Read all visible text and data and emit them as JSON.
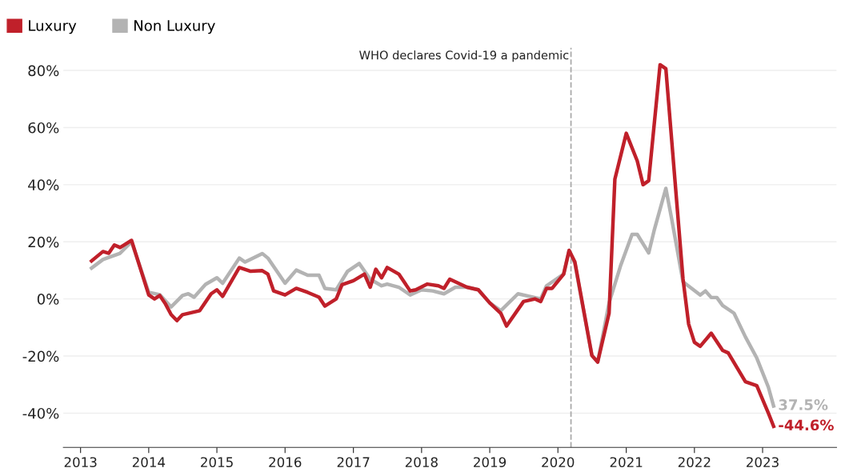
{
  "chart_data": {
    "type": "line",
    "series": [
      {
        "name": "Luxury",
        "color": "#c0202a",
        "x": [
          "2013-03",
          "2013-05",
          "2013-06",
          "2013-07",
          "2013-08",
          "2013-10",
          "2014-01",
          "2014-02",
          "2014-03",
          "2014-04",
          "2014-05",
          "2014-06",
          "2014-07",
          "2014-10",
          "2014-12",
          "2015-01",
          "2015-02",
          "2015-05",
          "2015-07",
          "2015-09",
          "2015-10",
          "2015-11",
          "2016-01",
          "2016-03",
          "2016-05",
          "2016-07",
          "2016-08",
          "2016-10",
          "2016-11",
          "2017-01",
          "2017-03",
          "2017-04",
          "2017-05",
          "2017-06",
          "2017-07",
          "2017-09",
          "2017-11",
          "2017-12",
          "2018-02",
          "2018-04",
          "2018-05",
          "2018-06",
          "2018-09",
          "2018-11",
          "2019-01",
          "2019-03",
          "2019-04",
          "2019-07",
          "2019-09",
          "2019-10",
          "2019-11",
          "2019-12",
          "2020-02",
          "2020-03",
          "2020-04",
          "2020-07",
          "2020-08",
          "2020-10",
          "2020-11",
          "2021-01",
          "2021-03",
          "2021-04",
          "2021-05",
          "2021-07",
          "2021-08",
          "2021-11",
          "2021-12",
          "2022-01",
          "2022-02",
          "2022-04",
          "2022-06",
          "2022-07",
          "2022-10",
          "2022-12",
          "2023-02",
          "2023-03"
        ],
        "values": [
          13.3,
          16.6,
          16,
          18.9,
          18,
          20.5,
          1.4,
          0,
          1.2,
          -1.8,
          -5.5,
          -7.6,
          -5.5,
          -4.1,
          1.8,
          3.2,
          0.9,
          11,
          9.7,
          9.9,
          8.7,
          2.8,
          1.4,
          3.7,
          2.3,
          0.6,
          -2.5,
          0,
          5,
          6.4,
          8.7,
          4.1,
          10.4,
          7.4,
          11,
          8.7,
          2.8,
          3.2,
          5.2,
          4.6,
          3.7,
          6.9,
          4.1,
          3.2,
          -1.4,
          -5,
          -9.5,
          -0.9,
          0,
          -0.9,
          3.7,
          3.7,
          8.7,
          17,
          12.9,
          -19.8,
          -22.1,
          -5,
          41.9,
          58,
          48.3,
          40,
          41.4,
          82,
          80.6,
          6.9,
          -8.8,
          -15.2,
          -16.6,
          -12,
          -18,
          -18.9,
          -29,
          -30.4,
          -40,
          -44.6
        ]
      },
      {
        "name": "Non Luxury",
        "color": "#b3b3b3",
        "x": [
          "2013-03",
          "2013-05",
          "2013-08",
          "2013-10",
          "2014-01",
          "2014-03",
          "2014-05",
          "2014-07",
          "2014-08",
          "2014-09",
          "2014-11",
          "2015-01",
          "2015-02",
          "2015-05",
          "2015-06",
          "2015-09",
          "2015-10",
          "2016-01",
          "2016-03",
          "2016-05",
          "2016-07",
          "2016-08",
          "2016-10",
          "2016-12",
          "2017-02",
          "2017-04",
          "2017-06",
          "2017-07",
          "2017-09",
          "2017-11",
          "2018-01",
          "2018-03",
          "2018-05",
          "2018-07",
          "2018-09",
          "2018-11",
          "2019-01",
          "2019-03",
          "2019-06",
          "2019-08",
          "2019-10",
          "2019-11",
          "2020-02",
          "2020-03",
          "2020-04",
          "2020-07",
          "2020-08",
          "2020-10",
          "2020-12",
          "2021-02",
          "2021-03",
          "2021-05",
          "2021-06",
          "2021-08",
          "2021-09",
          "2021-11",
          "2022-02",
          "2022-03",
          "2022-04",
          "2022-05",
          "2022-06",
          "2022-08",
          "2022-10",
          "2022-12",
          "2023-02",
          "2023-03"
        ],
        "values": [
          10.8,
          13.8,
          16,
          20,
          2.3,
          1.5,
          -2.8,
          1.2,
          1.8,
          0.6,
          5.1,
          7.4,
          5.5,
          14.3,
          12.9,
          15.9,
          14.3,
          5.5,
          10.1,
          8.3,
          8.3,
          3.7,
          3.2,
          9.7,
          12.4,
          6.9,
          4.6,
          5.2,
          4.1,
          1.4,
          3.2,
          2.8,
          1.8,
          4.1,
          4.1,
          3.2,
          -1.4,
          -4.1,
          1.8,
          0.9,
          0,
          4.6,
          8.7,
          17,
          12.4,
          -19.8,
          -22.1,
          -1.4,
          11.5,
          22.6,
          22.6,
          16.1,
          24.4,
          38.7,
          28.1,
          6,
          1.4,
          2.8,
          0.5,
          0.5,
          -2.3,
          -5,
          -13.3,
          -20.7,
          -30.9,
          -37.5
        ]
      }
    ],
    "xlim": [
      "2012-10",
      "2024-02"
    ],
    "xticks": [
      {
        "value": "2013",
        "label": "2013"
      },
      {
        "value": "2014",
        "label": "2014"
      },
      {
        "value": "2015",
        "label": "2015"
      },
      {
        "value": "2016",
        "label": "2016"
      },
      {
        "value": "2017",
        "label": "2017"
      },
      {
        "value": "2018",
        "label": "2018"
      },
      {
        "value": "2019",
        "label": "2019"
      },
      {
        "value": "2020",
        "label": "2020"
      },
      {
        "value": "2021",
        "label": "2021"
      },
      {
        "value": "2022",
        "label": "2022"
      },
      {
        "value": "2023",
        "label": "2023"
      }
    ],
    "ylim": [
      -52,
      88
    ],
    "yticks": [
      {
        "value": -40,
        "label": "-40%"
      },
      {
        "value": -20,
        "label": "-20%"
      },
      {
        "value": 0,
        "label": "0%"
      },
      {
        "value": 20,
        "label": "20%"
      },
      {
        "value": 40,
        "label": "40%"
      },
      {
        "value": 60,
        "label": "60%"
      },
      {
        "value": 80,
        "label": "80%"
      }
    ],
    "ref_lines": [
      {
        "axis": "x",
        "value": "2020-03-11",
        "label": "WHO declares Covid-19 a pandemic",
        "color": "#aaaaaa",
        "line_style": "dashed"
      }
    ],
    "annotations": [
      {
        "text": "-44.6%",
        "x": "2023-03",
        "y": -44.6
      },
      {
        "text": "37.5%",
        "x": "2023-03",
        "y": -37.5
      }
    ],
    "grid": "y",
    "legend": "top left",
    "marker": "none",
    "line_style": "solid"
  }
}
